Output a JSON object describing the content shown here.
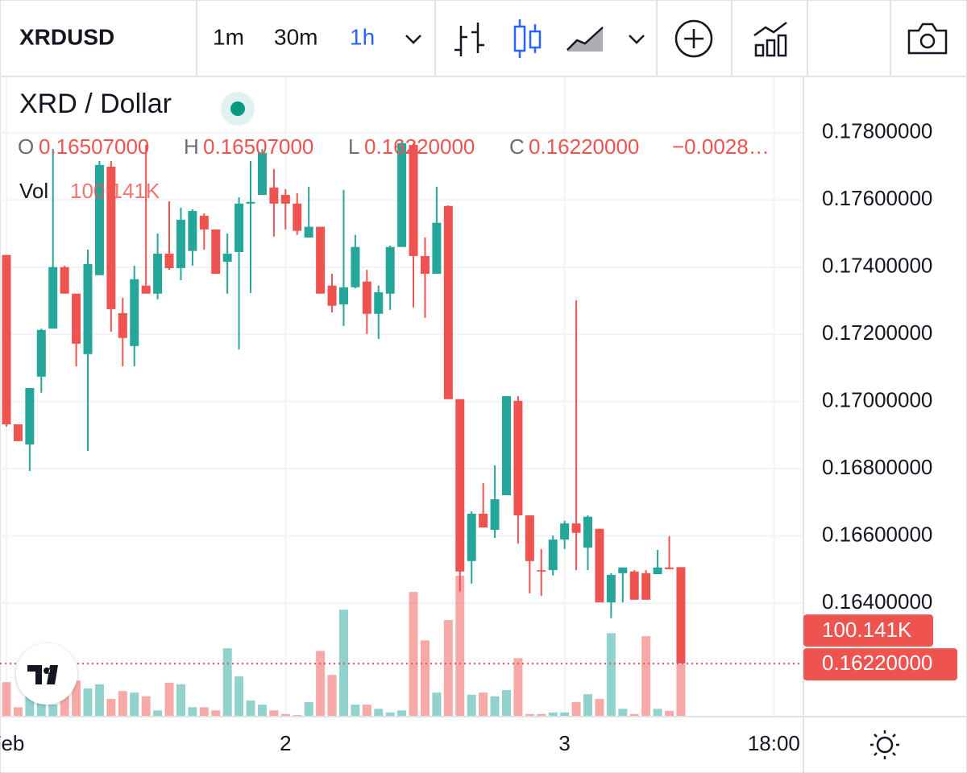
{
  "toolbar": {
    "symbol": "XRDUSD",
    "intervals": [
      "1m",
      "30m",
      "1h"
    ],
    "active_interval": 2,
    "active_color": "#2962ff"
  },
  "legend": {
    "title": "XRD / Dollar",
    "fields": [
      {
        "label": "O",
        "value": "0.16507000"
      },
      {
        "label": "H",
        "value": "0.16507000"
      },
      {
        "label": "L",
        "value": "0.16220000"
      },
      {
        "label": "C",
        "value": "0.16220000"
      }
    ],
    "change": "−0.0028…",
    "volume_label": "Vol",
    "volume": "100.141K"
  },
  "chart_data": {
    "type": "candlestick",
    "open": [
      0.17436,
      0.16932,
      0.16872,
      0.17074,
      0.17217,
      0.174,
      0.17321,
      0.17141,
      0.17376,
      0.17699,
      0.17263,
      0.17165,
      0.17345,
      0.17321,
      0.1744,
      0.17397,
      0.17448,
      0.17553,
      0.17512,
      0.17416,
      0.17445,
      0.17589,
      0.17615,
      0.17637,
      0.17615,
      0.17589,
      0.17488,
      0.1752,
      0.17345,
      0.17289,
      0.1734,
      0.17357,
      0.17261,
      0.17321,
      0.1746,
      0.17764,
      0.17433,
      0.1738,
      0.17582,
      0.17007,
      0.16525,
      0.16666,
      0.16618,
      0.16721,
      0.17002,
      0.16661,
      0.16498,
      0.16498,
      0.16589,
      0.16637,
      0.16565,
      0.16621,
      0.16402,
      0.16489,
      0.16494,
      0.16489,
      0.16486,
      0.16506,
      0.16507
    ],
    "high": [
      0.17436,
      0.16932,
      0.1704,
      0.17217,
      0.17752,
      0.17404,
      0.17321,
      0.17452,
      0.17716,
      0.17716,
      0.17309,
      0.17404,
      0.17764,
      0.175,
      0.17596,
      0.17577,
      0.17572,
      0.1756,
      0.17512,
      0.175,
      0.17608,
      0.17716,
      0.17752,
      0.17692,
      0.17632,
      0.1762,
      0.17639,
      0.1752,
      0.1738,
      0.1763,
      0.17496,
      0.17392,
      0.17345,
      0.17464,
      0.17776,
      0.17769,
      0.17488,
      0.17639,
      0.17584,
      0.17007,
      0.16673,
      0.16757,
      0.1681,
      0.17016,
      0.17016,
      0.16661,
      0.16561,
      0.16601,
      0.16645,
      0.17301,
      0.16661,
      0.16621,
      0.16489,
      0.16506,
      0.16498,
      0.16498,
      0.16558,
      0.16599,
      0.16507
    ],
    "low": [
      0.16925,
      0.16882,
      0.16793,
      0.17026,
      0.17217,
      0.17321,
      0.17105,
      0.16853,
      0.17376,
      0.17208,
      0.17105,
      0.17105,
      0.17321,
      0.17304,
      0.17392,
      0.17361,
      0.17404,
      0.17452,
      0.1738,
      0.17321,
      0.17155,
      0.17323,
      0.17615,
      0.17491,
      0.17512,
      0.17496,
      0.17488,
      0.17321,
      0.17265,
      0.17225,
      0.17337,
      0.17201,
      0.17186,
      0.17273,
      0.1746,
      0.1728,
      0.17249,
      0.1738,
      0.17007,
      0.16434,
      0.16458,
      0.16625,
      0.16594,
      0.16721,
      0.16577,
      0.16429,
      0.16422,
      0.16482,
      0.16561,
      0.16498,
      0.16498,
      0.16402,
      0.16355,
      0.16402,
      0.1641,
      0.1641,
      0.16486,
      0.16501,
      0.1622
    ],
    "close": [
      0.16932,
      0.16882,
      0.1704,
      0.17213,
      0.174,
      0.17321,
      0.17172,
      0.17409,
      0.17704,
      0.17275,
      0.17189,
      0.17364,
      0.17321,
      0.1744,
      0.17397,
      0.17541,
      0.17567,
      0.17512,
      0.1738,
      0.1744,
      0.17589,
      0.17594,
      0.1774,
      0.17589,
      0.17589,
      0.17508,
      0.1752,
      0.17321,
      0.17285,
      0.1734,
      0.1746,
      0.17261,
      0.17325,
      0.1746,
      0.17769,
      0.17433,
      0.1738,
      0.17532,
      0.17007,
      0.16494,
      0.16666,
      0.16625,
      0.16709,
      0.17016,
      0.16661,
      0.16525,
      0.16494,
      0.16589,
      0.16637,
      0.16609,
      0.16657,
      0.16402,
      0.16484,
      0.16506,
      0.1641,
      0.1641,
      0.16506,
      0.16501,
      0.1622
    ],
    "volume": [
      66000,
      18000,
      39000,
      59000,
      23000,
      46000,
      69000,
      54000,
      62000,
      34000,
      49000,
      46000,
      39000,
      12000,
      65000,
      62000,
      18000,
      18000,
      12000,
      131000,
      77000,
      31000,
      23000,
      12000,
      5000,
      3000,
      28000,
      126000,
      80000,
      205000,
      23000,
      23000,
      15000,
      8000,
      12000,
      239000,
      146000,
      46000,
      185000,
      270000,
      42000,
      46000,
      39000,
      51000,
      112000,
      5000,
      5000,
      8000,
      8000,
      28000,
      43000,
      34000,
      160000,
      15000,
      5000,
      154000,
      15000,
      11000,
      100141
    ],
    "last_labels": {
      "volume": "100.141K",
      "close": "0.16220000"
    },
    "ylim": [
      0.16062,
      0.17965
    ],
    "yticks": [
      {
        "value": 0.164,
        "label": "0.16400000"
      },
      {
        "value": 0.166,
        "label": "0.16600000"
      },
      {
        "value": 0.168,
        "label": "0.16800000"
      },
      {
        "value": 0.17,
        "label": "0.17000000"
      },
      {
        "value": 0.172,
        "label": "0.17200000"
      },
      {
        "value": 0.174,
        "label": "0.17400000"
      },
      {
        "value": 0.176,
        "label": "0.17600000"
      },
      {
        "value": 0.178,
        "label": "0.17800000"
      }
    ],
    "xticks": [
      {
        "value": 0,
        "label": "Feb"
      },
      {
        "value": 24,
        "label": "2"
      },
      {
        "value": 48,
        "label": "3"
      },
      {
        "value": 66,
        "label": "18:00"
      }
    ],
    "colors": {
      "up": "#26a69a",
      "down": "#ef5350"
    },
    "grid": true
  }
}
